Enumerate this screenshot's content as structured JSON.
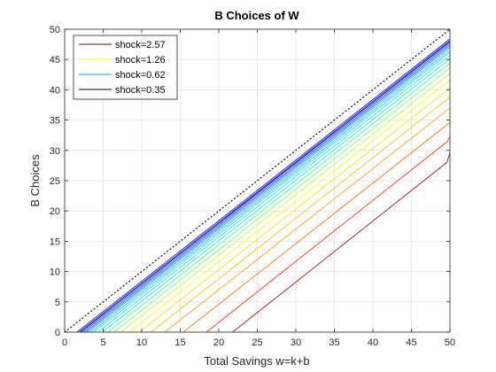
{
  "chart_data": {
    "type": "line",
    "title": "B Choices of W",
    "xlabel": "Total Savings w=k+b",
    "ylabel": "B Choices",
    "xlim": [
      0,
      50
    ],
    "ylim": [
      0,
      50
    ],
    "x_ticks": [
      0,
      5,
      10,
      15,
      20,
      25,
      30,
      35,
      40,
      45,
      50
    ],
    "y_ticks": [
      0,
      5,
      10,
      15,
      20,
      25,
      30,
      35,
      40,
      45,
      50
    ],
    "grid": true,
    "legend_position": "top-left",
    "legend": [
      {
        "label": "shock=2.57",
        "color": "#8b0000"
      },
      {
        "label": "shock=1.26",
        "color": "#ffff00"
      },
      {
        "label": "shock=0.62",
        "color": "#00aaff"
      },
      {
        "label": "shock=0.35",
        "color": "#000000"
      }
    ],
    "reference_line": {
      "x": [
        0,
        50
      ],
      "y": [
        0,
        50
      ],
      "style": "dotted",
      "color": "#000000"
    },
    "series": [
      {
        "x": [
          1.6,
          50
        ],
        "y": [
          0,
          48.4
        ],
        "color": "#00008b"
      },
      {
        "x": [
          1.9,
          50
        ],
        "y": [
          0,
          48.1
        ],
        "color": "#0000cd"
      },
      {
        "x": [
          2.1,
          50
        ],
        "y": [
          0,
          47.9
        ],
        "color": "#0000ff"
      },
      {
        "x": [
          2.4,
          50
        ],
        "y": [
          0,
          47.6
        ],
        "color": "#0033ff"
      },
      {
        "x": [
          2.7,
          50
        ],
        "y": [
          0,
          47.3
        ],
        "color": "#0066ff"
      },
      {
        "x": [
          3.0,
          50
        ],
        "y": [
          0,
          47.0
        ],
        "color": "#0099ff"
      },
      {
        "x": [
          3.4,
          50
        ],
        "y": [
          0,
          46.6
        ],
        "color": "#00bbff"
      },
      {
        "x": [
          3.8,
          50
        ],
        "y": [
          0,
          46.2
        ],
        "color": "#00ddff"
      },
      {
        "x": [
          4.3,
          50
        ],
        "y": [
          0,
          45.7
        ],
        "color": "#00ffee"
      },
      {
        "x": [
          4.9,
          50
        ],
        "y": [
          0,
          45.1
        ],
        "color": "#00ffcc"
      },
      {
        "x": [
          5.6,
          50
        ],
        "y": [
          0,
          44.4
        ],
        "color": "#33ff99"
      },
      {
        "x": [
          6.4,
          50
        ],
        "y": [
          0,
          43.6
        ],
        "color": "#77ff66"
      },
      {
        "x": [
          7.3,
          50
        ],
        "y": [
          0,
          42.7
        ],
        "color": "#bbff33"
      },
      {
        "x": [
          8.4,
          50
        ],
        "y": [
          0,
          41.6
        ],
        "color": "#ffff00"
      },
      {
        "x": [
          9.7,
          50
        ],
        "y": [
          0,
          40.3
        ],
        "color": "#ffdd00"
      },
      {
        "x": [
          11.2,
          50
        ],
        "y": [
          0,
          38.8
        ],
        "color": "#ffbb00"
      },
      {
        "x": [
          13.0,
          50
        ],
        "y": [
          0,
          37.0
        ],
        "color": "#ff9900"
      },
      {
        "x": [
          15.4,
          50
        ],
        "y": [
          0,
          34.6
        ],
        "color": "#ff6600"
      },
      {
        "x": [
          18.4,
          49.6,
          50
        ],
        "y": [
          0,
          31.4,
          32.2
        ],
        "color": "#ff2200"
      },
      {
        "x": [
          21.8,
          49.6,
          50
        ],
        "y": [
          0,
          28.0,
          29.6
        ],
        "color": "#8b0000"
      }
    ]
  }
}
